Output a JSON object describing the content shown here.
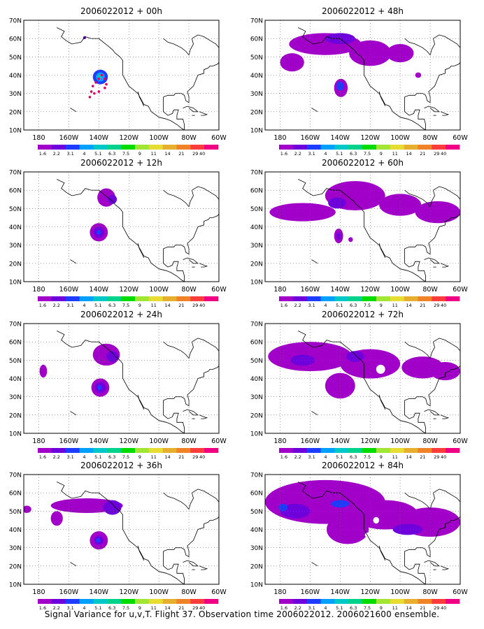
{
  "caption": "Signal Variance for u,v,T. Flight 37. Observation time 2006022012. 2006021600 ensemble.",
  "colorbar": {
    "labels": [
      "1.6",
      "2.2",
      "3.1",
      "4",
      "5.1",
      "6.3",
      "7.5",
      "9",
      "11",
      "14",
      "21",
      "29",
      "40"
    ],
    "colors": [
      "#a000c8",
      "#6e00dc",
      "#1e3cff",
      "#00a0ff",
      "#00c8c8",
      "#00d28c",
      "#00dc00",
      "#a0e632",
      "#e6dc32",
      "#e6af2d",
      "#f08228",
      "#fa3c3c",
      "#f00082"
    ]
  },
  "map": {
    "lat_labels": [
      "70N",
      "60N",
      "50N",
      "40N",
      "30N",
      "20N",
      "10N"
    ],
    "lon_labels": [
      "180",
      "160W",
      "140W",
      "120W",
      "100W",
      "80W",
      "60W"
    ],
    "lon_range": [
      -190,
      -60
    ],
    "lat_range": [
      10,
      70
    ]
  },
  "panels": [
    {
      "title": "2006022012 + 00h",
      "blobs": [
        {
          "lon": -139,
          "lat": 39,
          "rx": 5,
          "ry": 4,
          "level": 2
        },
        {
          "lon": -139,
          "lat": 39,
          "rx": 3,
          "ry": 2.5,
          "level": 3
        },
        {
          "lon": -139.5,
          "lat": 39,
          "rx": 1.5,
          "ry": 1.2,
          "level": 4
        },
        {
          "lon": -149.5,
          "lat": 60.5,
          "rx": 1,
          "ry": 0.8,
          "level": 1
        }
      ],
      "track": [
        [
          -146,
          28
        ],
        [
          -145,
          31
        ],
        [
          -144,
          34
        ],
        [
          -142,
          36
        ],
        [
          -140,
          38
        ],
        [
          -138,
          40
        ],
        [
          -136,
          38
        ],
        [
          -135,
          35
        ],
        [
          -136,
          33
        ],
        [
          -140,
          31
        ],
        [
          -143,
          30
        ]
      ]
    },
    {
      "title": "2006022012 + 48h",
      "blobs": [
        {
          "lon": -150,
          "lat": 57,
          "rx": 24,
          "ry": 6,
          "level": 0
        },
        {
          "lon": -120,
          "lat": 52,
          "rx": 14,
          "ry": 7,
          "level": 0
        },
        {
          "lon": -100,
          "lat": 52,
          "rx": 9,
          "ry": 5,
          "level": 0
        },
        {
          "lon": -172,
          "lat": 47,
          "rx": 8,
          "ry": 5,
          "level": 0
        },
        {
          "lon": -140,
          "lat": 60,
          "rx": 10,
          "ry": 3,
          "level": 1
        },
        {
          "lon": -139.5,
          "lat": 33,
          "rx": 4.5,
          "ry": 5,
          "level": 0
        },
        {
          "lon": -140,
          "lat": 34,
          "rx": 2.5,
          "ry": 2.5,
          "level": 2
        },
        {
          "lon": -88,
          "lat": 40,
          "rx": 2,
          "ry": 1.5,
          "level": 0
        }
      ]
    },
    {
      "title": "2006022012 + 12h",
      "blobs": [
        {
          "lon": -135,
          "lat": 56,
          "rx": 6,
          "ry": 5,
          "level": 0
        },
        {
          "lon": -131,
          "lat": 55,
          "rx": 3,
          "ry": 2.5,
          "level": 1
        },
        {
          "lon": -140,
          "lat": 37,
          "rx": 6,
          "ry": 5,
          "level": 0
        },
        {
          "lon": -140,
          "lat": 37,
          "rx": 3.5,
          "ry": 3,
          "level": 1
        },
        {
          "lon": -140,
          "lat": 37,
          "rx": 1.5,
          "ry": 1.3,
          "level": 2
        }
      ]
    },
    {
      "title": "2006022012 + 60h",
      "blobs": [
        {
          "lon": -165,
          "lat": 48,
          "rx": 22,
          "ry": 5,
          "level": 0
        },
        {
          "lon": -130,
          "lat": 57,
          "rx": 20,
          "ry": 8,
          "level": 0
        },
        {
          "lon": -100,
          "lat": 52,
          "rx": 14,
          "ry": 6,
          "level": 0
        },
        {
          "lon": -75,
          "lat": 48,
          "rx": 15,
          "ry": 6,
          "level": 0
        },
        {
          "lon": -142,
          "lat": 53,
          "rx": 6,
          "ry": 3,
          "level": 1
        },
        {
          "lon": -141,
          "lat": 35,
          "rx": 3,
          "ry": 4,
          "level": 0
        },
        {
          "lon": -141,
          "lat": 35,
          "rx": 1.5,
          "ry": 2,
          "level": 1
        },
        {
          "lon": -133,
          "lat": 33,
          "rx": 1.5,
          "ry": 1.3,
          "level": 0
        }
      ]
    },
    {
      "title": "2006022012 + 24h",
      "blobs": [
        {
          "lon": -135,
          "lat": 53,
          "rx": 9,
          "ry": 6,
          "level": 0
        },
        {
          "lon": -131,
          "lat": 52,
          "rx": 4,
          "ry": 3,
          "level": 1
        },
        {
          "lon": -139,
          "lat": 35,
          "rx": 6,
          "ry": 5,
          "level": 0
        },
        {
          "lon": -139,
          "lat": 35,
          "rx": 3.5,
          "ry": 3,
          "level": 1
        },
        {
          "lon": -139.5,
          "lat": 35,
          "rx": 1.5,
          "ry": 1.3,
          "level": 2
        },
        {
          "lon": -177,
          "lat": 44,
          "rx": 2.5,
          "ry": 3.5,
          "level": 0
        }
      ]
    },
    {
      "title": "2006022012 + 72h",
      "blobs": [
        {
          "lon": -160,
          "lat": 52,
          "rx": 28,
          "ry": 8,
          "level": 0
        },
        {
          "lon": -120,
          "lat": 48,
          "rx": 20,
          "ry": 8,
          "level": 0
        },
        {
          "lon": -85,
          "lat": 46,
          "rx": 14,
          "ry": 6,
          "level": 0
        },
        {
          "lon": -70,
          "lat": 44,
          "rx": 10,
          "ry": 5,
          "level": 0
        },
        {
          "lon": -140,
          "lat": 36,
          "rx": 10,
          "ry": 7,
          "level": 0
        },
        {
          "lon": -165,
          "lat": 50,
          "rx": 8,
          "ry": 3,
          "level": 1
        },
        {
          "lon": -130,
          "lat": 52,
          "rx": 6,
          "ry": 3,
          "level": 1
        }
      ],
      "holes": [
        {
          "lon": -113,
          "lat": 45,
          "rx": 3,
          "ry": 2.5
        }
      ]
    },
    {
      "title": "2006022012 + 36h",
      "blobs": [
        {
          "lon": -148,
          "lat": 53,
          "rx": 24,
          "ry": 4,
          "level": 0
        },
        {
          "lon": -131,
          "lat": 52,
          "rx": 6,
          "ry": 4,
          "level": 1
        },
        {
          "lon": -168,
          "lat": 46,
          "rx": 4,
          "ry": 4,
          "level": 0
        },
        {
          "lon": -188,
          "lat": 51,
          "rx": 3,
          "ry": 2,
          "level": 0
        },
        {
          "lon": -140,
          "lat": 34,
          "rx": 6,
          "ry": 5,
          "level": 0
        },
        {
          "lon": -140,
          "lat": 34,
          "rx": 3,
          "ry": 2.5,
          "level": 1
        },
        {
          "lon": -140.5,
          "lat": 34,
          "rx": 1.5,
          "ry": 1.2,
          "level": 2
        }
      ]
    },
    {
      "title": "2006022012 + 84h",
      "blobs": [
        {
          "lon": -150,
          "lat": 55,
          "rx": 40,
          "ry": 12,
          "level": 0
        },
        {
          "lon": -110,
          "lat": 48,
          "rx": 22,
          "ry": 8,
          "level": 0
        },
        {
          "lon": -80,
          "lat": 44,
          "rx": 20,
          "ry": 8,
          "level": 0
        },
        {
          "lon": -135,
          "lat": 40,
          "rx": 14,
          "ry": 8,
          "level": 0
        },
        {
          "lon": -170,
          "lat": 50,
          "rx": 10,
          "ry": 4,
          "level": 1
        },
        {
          "lon": -140,
          "lat": 54,
          "rx": 6,
          "ry": 2,
          "level": 2
        },
        {
          "lon": -178,
          "lat": 52,
          "rx": 3,
          "ry": 2,
          "level": 2
        },
        {
          "lon": -95,
          "lat": 40,
          "rx": 10,
          "ry": 3,
          "level": 1
        }
      ],
      "holes": [
        {
          "lon": -116,
          "lat": 45,
          "rx": 2,
          "ry": 1.8
        },
        {
          "lon": -122,
          "lat": 37,
          "rx": 1.5,
          "ry": 1.3
        }
      ]
    }
  ]
}
